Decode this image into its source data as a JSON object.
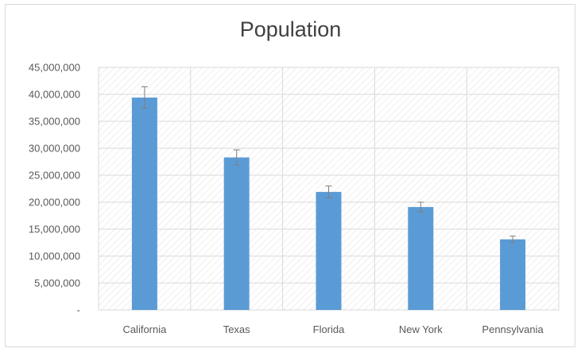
{
  "chart_data": {
    "type": "bar",
    "title": "Population",
    "categories": [
      "California",
      "Texas",
      "Florida",
      "New York",
      "Pennsylvania"
    ],
    "series": [
      {
        "values": [
          39400000,
          28300000,
          21900000,
          19100000,
          13100000
        ],
        "error": [
          2000000,
          1400000,
          1100000,
          900000,
          600000
        ]
      }
    ],
    "ylim": [
      0,
      45000000
    ],
    "y_ticks": [
      0,
      5000000,
      10000000,
      15000000,
      20000000,
      25000000,
      30000000,
      35000000,
      40000000,
      45000000
    ],
    "y_tick_labels": [
      "-",
      "5,000,000",
      "10,000,000",
      "15,000,000",
      "20,000,000",
      "25,000,000",
      "30,000,000",
      "35,000,000",
      "40,000,000",
      "45,000,000"
    ],
    "grid": true,
    "legend": "none",
    "colors": {
      "bar": "#5b9bd5",
      "grid": "#d9d9d9",
      "hatch": "#e4e4e4",
      "error_bar": "#7f7f7f",
      "text": "#595959",
      "title": "#404040"
    }
  }
}
